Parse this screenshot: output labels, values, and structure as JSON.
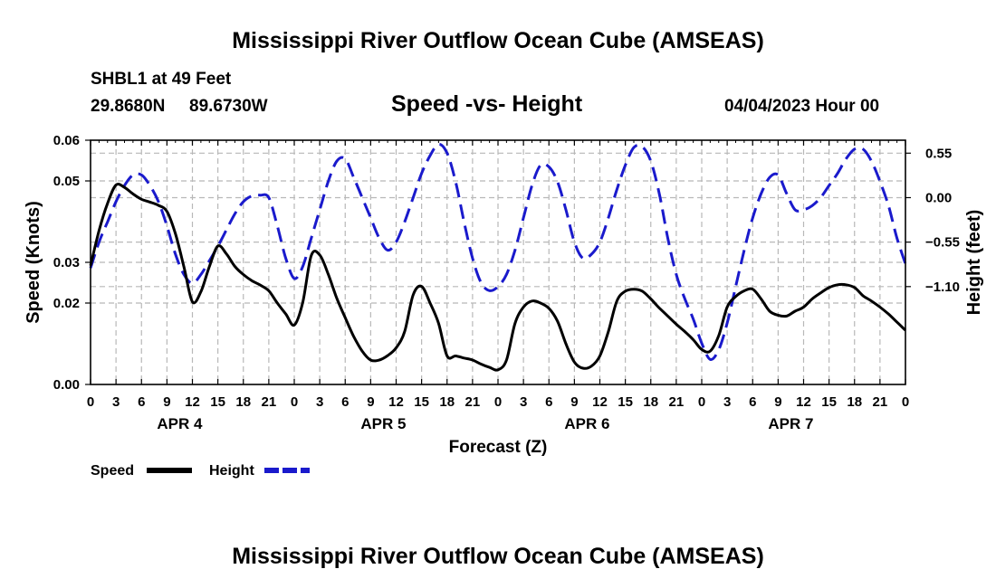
{
  "page_title_top": "Mississippi River Outflow Ocean Cube (AMSEAS)",
  "page_title_bottom": "Mississippi River Outflow Ocean Cube (AMSEAS)",
  "station": {
    "name_depth": "SHBL1 at 49 Feet",
    "lat": "29.8680N",
    "lon": "89.6730W"
  },
  "date_label": "04/04/2023 Hour 00",
  "chart_data": {
    "type": "line",
    "title": "Speed -vs- Height",
    "xlabel": "Forecast (Z)",
    "ylabel": "Speed (Knots)",
    "y2label": "Height (feet)",
    "ylim": [
      0,
      0.06
    ],
    "y2lim": [
      -2.31,
      0.71
    ],
    "xlim": [
      0,
      96
    ],
    "grid": true,
    "yticks": [
      0.0,
      0.02,
      0.03,
      0.05,
      0.06
    ],
    "yticklabels": [
      "0.00",
      "0.02",
      "0.03",
      "0.05",
      "0.06"
    ],
    "y2ticks": [
      0.55,
      0.0,
      -0.55,
      -1.1
    ],
    "y2ticklabels": [
      "0.55",
      "0.00",
      "−0.55",
      "−1.10"
    ],
    "xticks": [
      0,
      3,
      6,
      9,
      12,
      15,
      18,
      21,
      24,
      27,
      30,
      33,
      36,
      39,
      42,
      45,
      48,
      51,
      54,
      57,
      60,
      63,
      66,
      69,
      72,
      75,
      78,
      81,
      84,
      87,
      90,
      93,
      96
    ],
    "xticklabels": [
      "0",
      "3",
      "6",
      "9",
      "12",
      "15",
      "18",
      "21",
      "0",
      "3",
      "6",
      "9",
      "12",
      "15",
      "18",
      "21",
      "0",
      "3",
      "6",
      "9",
      "12",
      "15",
      "18",
      "21",
      "0",
      "3",
      "6",
      "9",
      "12",
      "15",
      "18",
      "21",
      "0"
    ],
    "day_labels": [
      {
        "x": 10.5,
        "label": "APR 4"
      },
      {
        "x": 34.5,
        "label": "APR 5"
      },
      {
        "x": 58.5,
        "label": "APR 6"
      },
      {
        "x": 82.5,
        "label": "APR 7"
      }
    ],
    "legend_position": "bottom-left",
    "series": [
      {
        "name": "Speed",
        "axis": "left",
        "color": "#000000",
        "dash": "solid",
        "x": [
          0,
          1,
          2,
          3,
          4,
          5,
          6,
          7,
          8,
          9,
          10,
          11,
          12,
          13,
          14,
          15,
          16,
          17,
          18,
          19,
          20,
          21,
          22,
          23,
          24,
          25,
          26,
          27,
          28,
          29,
          30,
          31,
          32,
          33,
          34,
          35,
          36,
          37,
          38,
          39,
          40,
          41,
          42,
          43,
          44,
          45,
          46,
          47,
          48,
          49,
          50,
          51,
          52,
          53,
          54,
          55,
          56,
          57,
          58,
          59,
          60,
          61,
          62,
          63,
          64,
          65,
          66,
          67,
          68,
          69,
          70,
          71,
          72,
          73,
          74,
          75,
          76,
          77,
          78,
          79,
          80,
          81,
          82,
          83,
          84,
          85,
          86,
          87,
          88,
          89,
          90,
          91,
          92,
          93,
          94,
          95,
          96
        ],
        "values": [
          0.0292,
          0.0378,
          0.0445,
          0.049,
          0.0484,
          0.0468,
          0.0455,
          0.0448,
          0.044,
          0.0425,
          0.037,
          0.0289,
          0.0203,
          0.0228,
          0.029,
          0.034,
          0.0321,
          0.029,
          0.027,
          0.0255,
          0.0244,
          0.023,
          0.02,
          0.0173,
          0.0146,
          0.0202,
          0.0317,
          0.0318,
          0.0271,
          0.0212,
          0.0164,
          0.0118,
          0.0082,
          0.006,
          0.006,
          0.0071,
          0.009,
          0.013,
          0.022,
          0.0241,
          0.02,
          0.015,
          0.007,
          0.007,
          0.0065,
          0.006,
          0.005,
          0.0042,
          0.0036,
          0.006,
          0.015,
          0.019,
          0.0205,
          0.02,
          0.0187,
          0.0156,
          0.01,
          0.0055,
          0.004,
          0.0045,
          0.007,
          0.013,
          0.0205,
          0.0229,
          0.0234,
          0.0229,
          0.021,
          0.0188,
          0.0168,
          0.0148,
          0.013,
          0.011,
          0.0086,
          0.0082,
          0.012,
          0.019,
          0.0216,
          0.023,
          0.0234,
          0.021,
          0.018,
          0.017,
          0.0168,
          0.018,
          0.019,
          0.021,
          0.0225,
          0.0238,
          0.0245,
          0.0245,
          0.0238,
          0.0218,
          0.0205,
          0.019,
          0.0173,
          0.0153,
          0.0133
        ]
      },
      {
        "name": "Height",
        "axis": "right",
        "color": "#1a1acc",
        "dash": "dashed",
        "x": [
          0,
          1,
          2,
          3,
          4,
          5,
          6,
          7,
          8,
          9,
          10,
          11,
          12,
          13,
          14,
          15,
          16,
          17,
          18,
          19,
          20,
          21,
          22,
          23,
          24,
          25,
          26,
          27,
          28,
          29,
          30,
          31,
          32,
          33,
          34,
          35,
          36,
          37,
          38,
          39,
          40,
          41,
          42,
          43,
          44,
          45,
          46,
          47,
          48,
          49,
          50,
          51,
          52,
          53,
          54,
          55,
          56,
          57,
          58,
          59,
          60,
          61,
          62,
          63,
          64,
          65,
          66,
          67,
          68,
          69,
          70,
          71,
          72,
          73,
          74,
          75,
          76,
          77,
          78,
          79,
          80,
          81,
          82,
          83,
          84,
          85,
          86,
          87,
          88,
          89,
          90,
          91,
          92,
          93,
          94,
          95,
          96
        ],
        "values": [
          -0.87,
          -0.55,
          -0.3,
          -0.05,
          0.15,
          0.28,
          0.28,
          0.15,
          -0.05,
          -0.35,
          -0.7,
          -0.95,
          -1.06,
          -0.95,
          -0.78,
          -0.6,
          -0.4,
          -0.2,
          -0.05,
          0.02,
          0.03,
          0.0,
          -0.35,
          -0.75,
          -1.0,
          -0.85,
          -0.5,
          -0.15,
          0.2,
          0.45,
          0.48,
          0.25,
          0.0,
          -0.25,
          -0.5,
          -0.65,
          -0.55,
          -0.3,
          0.0,
          0.3,
          0.52,
          0.66,
          0.55,
          0.2,
          -0.3,
          -0.75,
          -1.05,
          -1.15,
          -1.1,
          -0.95,
          -0.65,
          -0.25,
          0.15,
          0.4,
          0.38,
          0.2,
          -0.15,
          -0.55,
          -0.75,
          -0.7,
          -0.55,
          -0.25,
          0.1,
          0.4,
          0.62,
          0.63,
          0.45,
          0.05,
          -0.5,
          -0.95,
          -1.25,
          -1.5,
          -1.8,
          -2.0,
          -1.88,
          -1.55,
          -1.1,
          -0.65,
          -0.25,
          0.05,
          0.25,
          0.28,
          0.05,
          -0.15,
          -0.15,
          -0.1,
          0.0,
          0.15,
          0.3,
          0.48,
          0.6,
          0.6,
          0.45,
          0.2,
          -0.1,
          -0.5,
          -0.82
        ]
      }
    ]
  }
}
